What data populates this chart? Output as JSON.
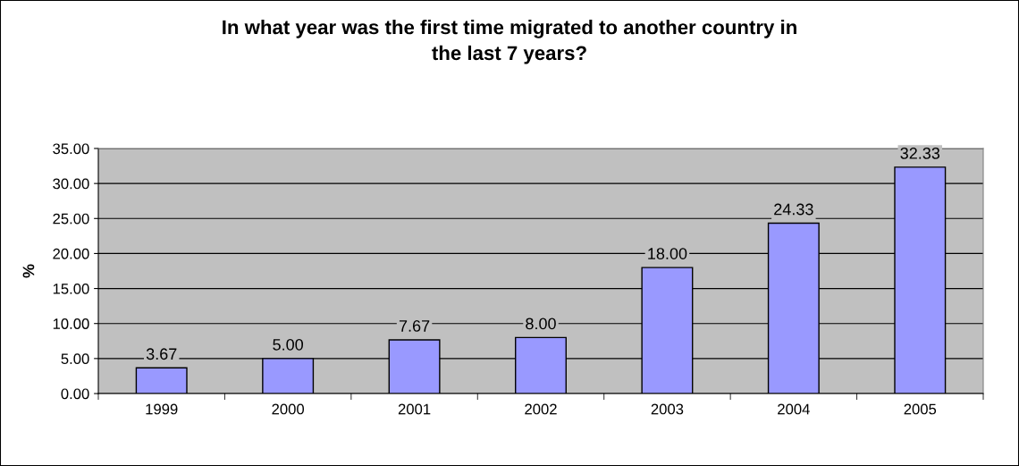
{
  "chart_data": {
    "type": "bar",
    "title": "In what year was the first time migrated to another country in\nthe last 7 years?",
    "ylabel": "%",
    "categories": [
      "1999",
      "2000",
      "2001",
      "2002",
      "2003",
      "2004",
      "2005"
    ],
    "values": [
      3.67,
      5.0,
      7.67,
      8.0,
      18.0,
      24.33,
      32.33
    ],
    "value_labels": [
      "3.67",
      "5.00",
      "7.67",
      "8.00",
      "18.00",
      "24.33",
      "32.33"
    ],
    "color": "#9999ff",
    "ylim": [
      0,
      35
    ],
    "yticks": [
      {
        "value": 0,
        "label": "0.00"
      },
      {
        "value": 5,
        "label": "5.00"
      },
      {
        "value": 10,
        "label": "10.00"
      },
      {
        "value": 15,
        "label": "15.00"
      },
      {
        "value": 20,
        "label": "20.00"
      },
      {
        "value": 25,
        "label": "25.00"
      },
      {
        "value": 30,
        "label": "30.00"
      },
      {
        "value": 35,
        "label": "35.00"
      }
    ],
    "grid": "y",
    "legend": false
  }
}
